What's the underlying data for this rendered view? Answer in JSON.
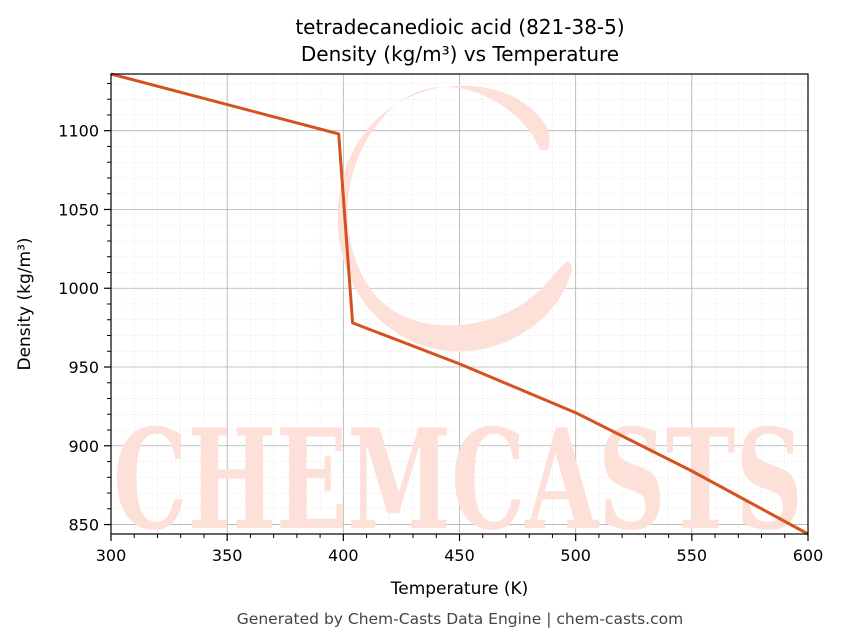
{
  "chart_data": {
    "type": "line",
    "title": "tetradecanedioic acid (821-38-5)",
    "subtitle": "Density (kg/m³) vs Temperature",
    "xlabel": "Temperature (K)",
    "ylabel": "Density (kg/m³)",
    "xlim": [
      300,
      600
    ],
    "ylim": [
      844,
      1136
    ],
    "xticks": [
      300,
      350,
      400,
      450,
      500,
      550,
      600
    ],
    "yticks": [
      850,
      900,
      950,
      1000,
      1050,
      1100
    ],
    "grid": true,
    "series": [
      {
        "x": [
          300,
          398,
          404,
          450,
          500,
          550,
          600
        ],
        "y": [
          1136,
          1098,
          978,
          952,
          921,
          884,
          844
        ]
      }
    ],
    "watermark": "CHEMCASTS",
    "footer": "Generated by Chem-Casts Data Engine | chem-casts.com"
  },
  "colors": {
    "line": "#d4521f",
    "watermark": "#fde0d8",
    "grid_major": "#b0b0b0",
    "grid_minor": "#e6e6e6"
  }
}
